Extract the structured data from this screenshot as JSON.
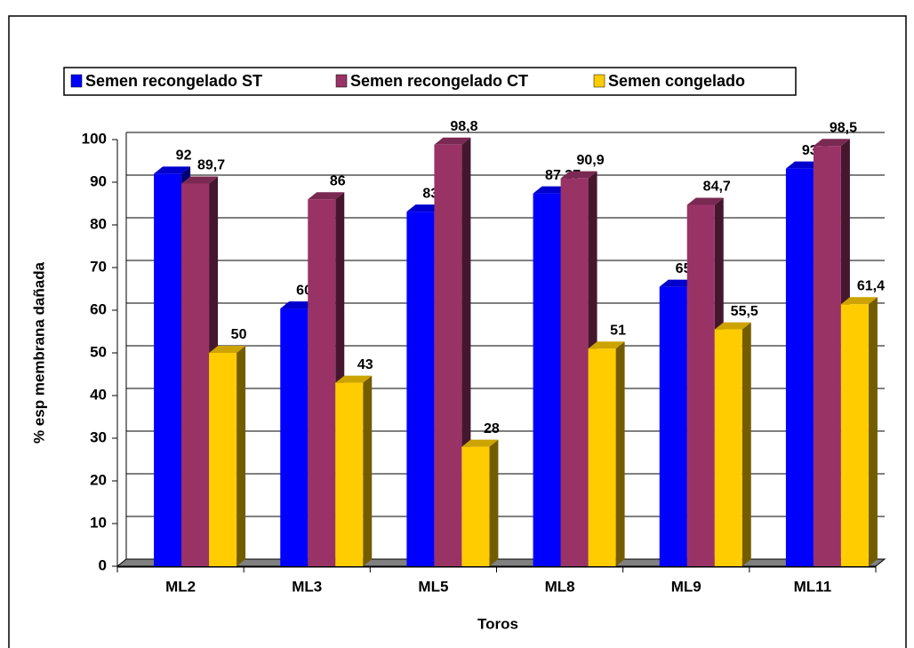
{
  "chart_data": {
    "type": "bar",
    "categories": [
      "ML2",
      "ML3",
      "ML5",
      "ML8",
      "ML9",
      "ML11"
    ],
    "series": [
      {
        "name": "Semen recongelado ST",
        "color": "#0000ff",
        "values": [
          92,
          60.4,
          83.1,
          87.37,
          65.5,
          93.2
        ],
        "value_labels": [
          "92",
          "60,4",
          "83,1",
          "87,37",
          "65,5",
          "93,2"
        ]
      },
      {
        "name": "Semen recongelado CT",
        "color": "#993366",
        "values": [
          89.7,
          86,
          98.8,
          90.9,
          84.7,
          98.5
        ],
        "value_labels": [
          "89,7",
          "86",
          "98,8",
          "90,9",
          "84,7",
          "98,5"
        ]
      },
      {
        "name": "Semen congelado",
        "color": "#ffcc00",
        "values": [
          50,
          43,
          28,
          51,
          55.5,
          61.4
        ],
        "value_labels": [
          "50",
          "43",
          "28",
          "51",
          "55,5",
          "61,4"
        ]
      }
    ],
    "x_label": "Toros",
    "y_label": "% esp membrana dañada",
    "ylim": [
      0,
      100
    ],
    "yticks": [
      0,
      10,
      20,
      30,
      40,
      50,
      60,
      70,
      80,
      90,
      100
    ],
    "grid": true,
    "legend": "top"
  }
}
